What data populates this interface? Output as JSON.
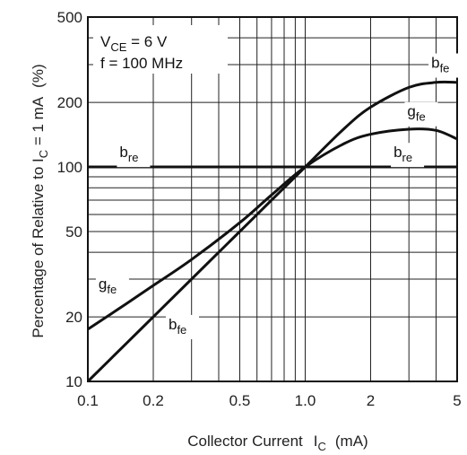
{
  "chart_data": {
    "type": "line",
    "x_scale": "log",
    "y_scale": "log",
    "xlim": [
      0.1,
      5
    ],
    "ylim": [
      10,
      500
    ],
    "grid": true,
    "x_ticks": [
      "0.1",
      "0.2",
      "0.5",
      "1.0",
      "2",
      "5"
    ],
    "x_tick_values": [
      0.1,
      0.2,
      0.5,
      1.0,
      2,
      5
    ],
    "y_ticks": [
      "10",
      "20",
      "50",
      "100",
      "200",
      "500"
    ],
    "y_tick_values": [
      10,
      20,
      50,
      100,
      200,
      500
    ],
    "xlabel": {
      "main": "Collector Current",
      "symbol": "I",
      "sub": "C",
      "unit": "(mA)"
    },
    "ylabel": {
      "main": "Percentage of Relative to I",
      "sub": "C",
      "rest": " = 1 mA",
      "unit": "(%)"
    },
    "conditions": [
      {
        "main": "V",
        "sub": "CE",
        "rest": " = 6 V"
      },
      {
        "main": "f = 100 MHz",
        "sub": "",
        "rest": ""
      }
    ],
    "series": [
      {
        "key": "bfe",
        "x": [
          0.1,
          0.15,
          0.2,
          0.3,
          0.5,
          0.7,
          1.0,
          1.5,
          2.0,
          3.0,
          4.0,
          5.0
        ],
        "y": [
          10,
          15,
          20,
          30,
          50,
          70,
          100,
          150,
          190,
          235,
          248,
          248
        ]
      },
      {
        "key": "gfe",
        "x": [
          0.1,
          0.15,
          0.2,
          0.3,
          0.5,
          0.7,
          1.0,
          1.5,
          2.0,
          3.0,
          4.0,
          5.0
        ],
        "y": [
          17.5,
          23,
          28,
          37,
          55,
          74,
          100,
          128,
          142,
          150,
          148,
          135
        ]
      },
      {
        "key": "bre",
        "x": [
          0.1,
          5.0
        ],
        "y": [
          100,
          100
        ]
      }
    ],
    "annotations": [
      {
        "main": "b",
        "sub": "fe",
        "x": 3.8,
        "y": 290
      },
      {
        "main": "g",
        "sub": "fe",
        "x": 2.95,
        "y": 172
      },
      {
        "main": "b",
        "sub": "re",
        "x": 2.55,
        "y": 111
      },
      {
        "main": "b",
        "sub": "re",
        "x": 0.14,
        "y": 111
      },
      {
        "main": "g",
        "sub": "fe",
        "x": 0.112,
        "y": 27
      },
      {
        "main": "b",
        "sub": "fe",
        "x": 0.235,
        "y": 17.5
      }
    ]
  }
}
